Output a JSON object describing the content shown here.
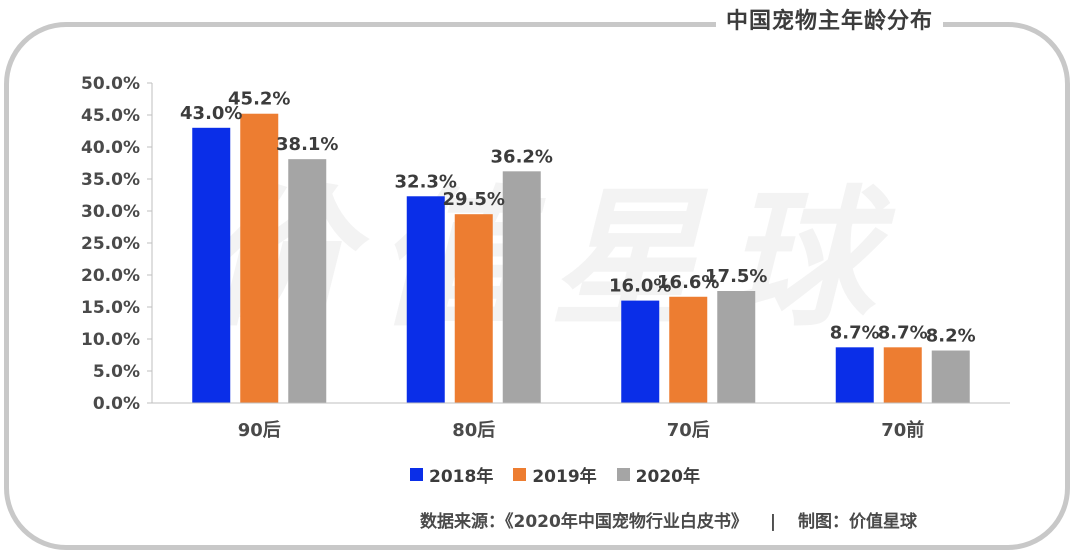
{
  "title": "中国宠物主年龄分布",
  "watermark": "价值星球",
  "chart_data": {
    "type": "bar",
    "categories": [
      "90后",
      "80后",
      "70后",
      "70前"
    ],
    "series": [
      {
        "name": "2018年",
        "color": "#0a2ee8",
        "values": [
          43.0,
          32.3,
          16.0,
          8.7
        ],
        "labels": [
          "43.0%",
          "32.3%",
          "16.0%",
          "8.7%"
        ]
      },
      {
        "name": "2019年",
        "color": "#ed7d31",
        "values": [
          45.2,
          29.5,
          16.6,
          8.7
        ],
        "labels": [
          "45.2%",
          "29.5%",
          "16.6%",
          "8.7%"
        ]
      },
      {
        "name": "2020年",
        "color": "#a5a5a5",
        "values": [
          38.1,
          36.2,
          17.5,
          8.2
        ],
        "labels": [
          "38.1%",
          "36.2%",
          "17.5%",
          "8.2%"
        ]
      }
    ],
    "ylim": [
      0,
      50
    ],
    "yticks": [
      0,
      5,
      10,
      15,
      20,
      25,
      30,
      35,
      40,
      45,
      50
    ],
    "ytick_labels": [
      "0.0%",
      "5.0%",
      "10.0%",
      "15.0%",
      "20.0%",
      "25.0%",
      "30.0%",
      "35.0%",
      "40.0%",
      "45.0%",
      "50.0%"
    ],
    "grid": false,
    "legend_position": "bottom"
  },
  "source": {
    "left": "数据来源：《2020年中国宠物行业白皮书》",
    "divider": "|",
    "right": "制图：价值星球"
  }
}
